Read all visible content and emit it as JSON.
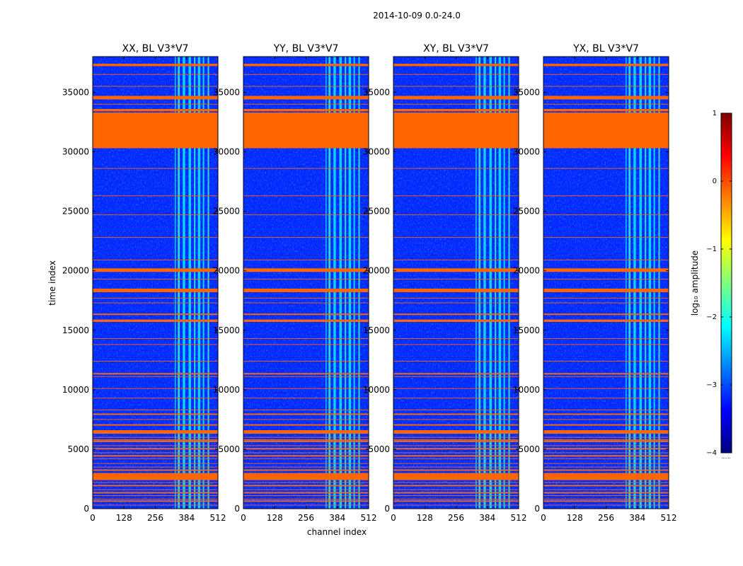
{
  "chart_data": {
    "type": "heatmap",
    "suptitle": "2014-10-09 0.0-24.0",
    "xlabel": "channel index",
    "ylabel": "time index",
    "xlim": [
      0,
      512
    ],
    "ylim": [
      0,
      38000
    ],
    "x_ticks": [
      0,
      128,
      256,
      384,
      512
    ],
    "y_ticks": [
      0,
      5000,
      10000,
      15000,
      20000,
      25000,
      30000,
      35000
    ],
    "colorbar": {
      "label": "log₁₀ amplitude",
      "range": [
        -4,
        1
      ],
      "ticks": [
        1,
        0,
        -1,
        -2,
        -3,
        -4
      ],
      "tick_labels": [
        "1",
        "0",
        "−1",
        "−2",
        "−3",
        "−4"
      ],
      "colormap": "jet",
      "footnote": "......"
    },
    "panels": [
      {
        "title": "XX, BL V3*V7"
      },
      {
        "title": "YY, BL V3*V7"
      },
      {
        "title": "XY, BL V3*V7"
      },
      {
        "title": "YX, BL V3*V7"
      }
    ],
    "flagged_value_color": "#ff6600",
    "background_level_log10": -3.2,
    "emission_level_log10": -2.1,
    "flag_bands_time": [
      [
        37200,
        37400
      ],
      [
        34400,
        34700
      ],
      [
        33400,
        33600
      ],
      [
        30300,
        33300
      ],
      [
        19900,
        20200
      ],
      [
        18200,
        18500
      ],
      [
        15700,
        15900
      ],
      [
        16300,
        16400
      ],
      [
        11300,
        11400
      ],
      [
        7900,
        8000
      ],
      [
        7000,
        7100
      ],
      [
        6300,
        6600
      ],
      [
        5600,
        5750
      ],
      [
        5000,
        5100
      ],
      [
        4400,
        4500
      ],
      [
        3200,
        3300
      ],
      [
        2400,
        3000
      ],
      [
        1900,
        2000
      ],
      [
        1300,
        1400
      ],
      [
        600,
        700
      ]
    ],
    "thin_flag_lines_time": [
      36500,
      35500,
      34000,
      31100,
      28600,
      26300,
      24700,
      22800,
      20900,
      19300,
      17700,
      17300,
      14300,
      13800,
      12400,
      11100,
      10100,
      9300,
      8300,
      7500,
      6000,
      5800,
      5300,
      4700,
      4200,
      3800,
      3500,
      2200,
      1600,
      1100,
      800,
      300
    ],
    "emission_channel_bands": [
      [
        336,
        340
      ],
      [
        348,
        356
      ],
      [
        368,
        378
      ],
      [
        392,
        402
      ],
      [
        414,
        420
      ],
      [
        430,
        440
      ],
      [
        450,
        456
      ],
      [
        470,
        476
      ]
    ]
  }
}
